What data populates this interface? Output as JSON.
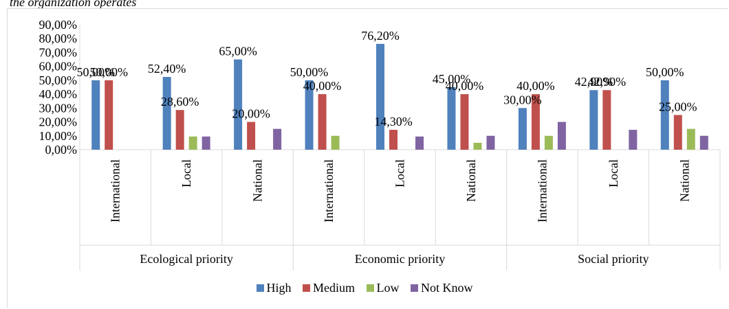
{
  "title_partial": "the organization operates",
  "chart_data": {
    "type": "bar",
    "ylim": [
      0,
      90
    ],
    "y_ticks": [
      "0,00%",
      "10,00%",
      "20,00%",
      "30,00%",
      "40,00%",
      "50,00%",
      "60,00%",
      "70,00%",
      "80,00%",
      "90,00%"
    ],
    "groups": [
      {
        "label": "Ecological priority",
        "categories": [
          "International",
          "Local",
          "National"
        ]
      },
      {
        "label": "Economic priority",
        "categories": [
          "International",
          "Local",
          "National"
        ]
      },
      {
        "label": "Social priority",
        "categories": [
          "International",
          "Local",
          "National"
        ]
      }
    ],
    "series": [
      {
        "name": "High",
        "color": "#4f81bd",
        "values": [
          50.0,
          52.4,
          65.0,
          50.0,
          76.2,
          45.0,
          30.0,
          42.9,
          50.0
        ]
      },
      {
        "name": "Medium",
        "color": "#c0504d",
        "values": [
          50.0,
          28.6,
          20.0,
          40.0,
          14.3,
          40.0,
          40.0,
          42.9,
          25.0
        ]
      },
      {
        "name": "Low",
        "color": "#9bbb59",
        "values": [
          0,
          9.5,
          0,
          10.0,
          0,
          5.0,
          10.0,
          0,
          15.0
        ]
      },
      {
        "name": "Not Know",
        "color": "#8064a2",
        "values": [
          0,
          9.5,
          15.0,
          0,
          9.5,
          10.0,
          20.0,
          14.3,
          10.0
        ]
      }
    ],
    "data_labels": [
      {
        "series": "High",
        "labels": [
          "50,00%",
          "52,40%",
          "65,00%",
          "50,00%",
          "76,20%",
          "45,00%",
          "30,00%",
          "42,90%",
          "50,00%"
        ]
      },
      {
        "series": "Medium",
        "labels": [
          "50,00%",
          "28,60%",
          "20,00%",
          "40,00%",
          "14,30%",
          "40,00%",
          "40,00%",
          "42,90%",
          "25,00%"
        ]
      }
    ],
    "legend_position": "bottom",
    "grid": false
  }
}
